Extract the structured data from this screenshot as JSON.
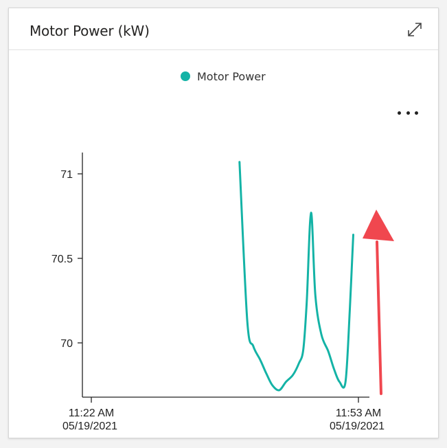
{
  "card": {
    "title": "Motor Power (kW)"
  },
  "icons": {
    "expand": "expand-icon",
    "more": "more-options-icon"
  },
  "colors": {
    "series": "#14b3a6",
    "annotation_arrow": "#f0474f"
  },
  "chart_data": {
    "type": "line",
    "title": "Motor Power (kW)",
    "xlabel": "",
    "ylabel": "",
    "legend_position": "top-center",
    "grid": false,
    "x_ticks": [
      {
        "time": "11:22 AM",
        "date": "05/19/2021"
      },
      {
        "time": "11:53 AM",
        "date": "05/19/2021"
      }
    ],
    "y_ticks": [
      "70",
      "70.5",
      "71"
    ],
    "ylim": [
      69.68,
      71.13
    ],
    "xlim_minutes": [
      0,
      31
    ],
    "series": [
      {
        "name": "Motor Power",
        "x_minutes": [
          17.2,
          18.1,
          18.8,
          19.6,
          20.3,
          21.0,
          21.8,
          22.6,
          23.4,
          24.1,
          24.6,
          25.0,
          25.5,
          26.0,
          26.7,
          27.5,
          28.2,
          28.8,
          29.5,
          30.0,
          30.4
        ],
        "values": [
          71.07,
          70.13,
          69.98,
          69.9,
          69.82,
          69.75,
          69.72,
          69.77,
          69.81,
          69.88,
          69.96,
          70.24,
          70.77,
          70.28,
          70.05,
          69.95,
          69.84,
          69.77,
          69.77,
          70.2,
          70.64
        ]
      }
    ]
  }
}
